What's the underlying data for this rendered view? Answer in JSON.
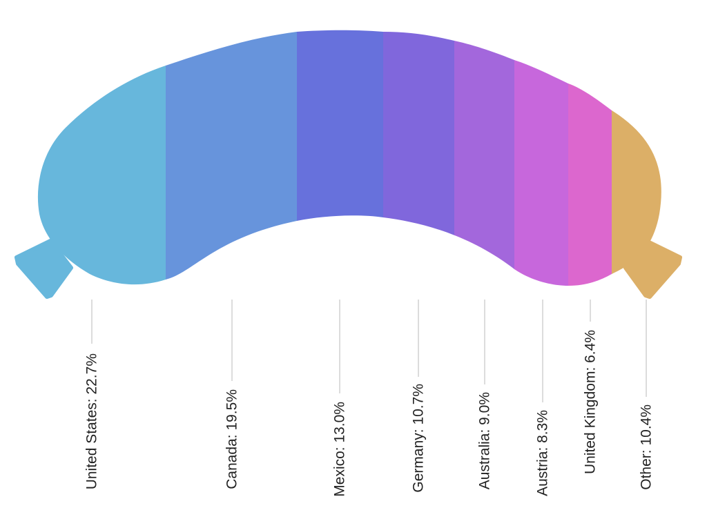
{
  "chart_data": {
    "type": "pie",
    "variant": "curved-strip",
    "title": "",
    "slices": [
      {
        "name": "United States",
        "label": "United States: 22.7%",
        "value": 22.7,
        "color": "#67b7dc"
      },
      {
        "name": "Canada",
        "label": "Canada: 19.5%",
        "value": 19.5,
        "color": "#6794dc"
      },
      {
        "name": "Mexico",
        "label": "Mexico: 13.0%",
        "value": 13.0,
        "color": "#6771dc"
      },
      {
        "name": "Germany",
        "label": "Germany: 10.7%",
        "value": 10.7,
        "color": "#8067dc"
      },
      {
        "name": "Australia",
        "label": "Australia: 9.0%",
        "value": 9.0,
        "color": "#a367dc"
      },
      {
        "name": "Austria",
        "label": "Austria: 8.3%",
        "value": 8.3,
        "color": "#c767dc"
      },
      {
        "name": "United Kingdom",
        "label": "United Kingdom: 6.4%",
        "value": 6.4,
        "color": "#dc67ce"
      },
      {
        "name": "Other",
        "label": "Other: 10.4%",
        "value": 10.4,
        "color": "#dcaf67"
      }
    ],
    "label_orientation": "vertical",
    "legend": "none"
  }
}
